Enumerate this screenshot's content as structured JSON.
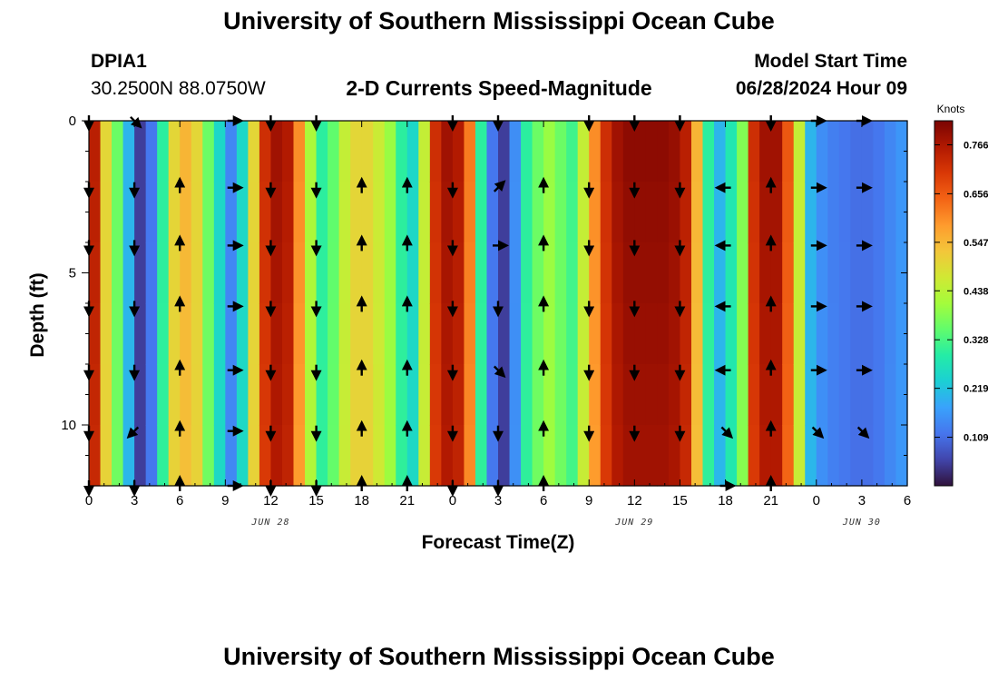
{
  "header": {
    "title": "University of Southern Mississippi Ocean Cube",
    "station_id": "DPIA1",
    "coordinates": "30.2500N  88.0750W",
    "chart_title": "2-D Currents Speed-Magnitude",
    "model_start_label": "Model Start Time",
    "model_start_value": "06/28/2024 Hour 09"
  },
  "footer": {
    "title": "University of Southern Mississippi Ocean Cube"
  },
  "chart_data": {
    "type": "heatmap",
    "title": "2-D Currents Speed-Magnitude",
    "xlabel": "Forecast Time(Z)",
    "ylabel": "Depth (ft)",
    "xlim": [
      0,
      54
    ],
    "ylim": [
      0,
      12
    ],
    "x_ticks": [
      {
        "label": "0",
        "hour": 0
      },
      {
        "label": "3",
        "hour": 3
      },
      {
        "label": "6",
        "hour": 6
      },
      {
        "label": "9",
        "hour": 9
      },
      {
        "label": "12",
        "hour": 12
      },
      {
        "label": "15",
        "hour": 15
      },
      {
        "label": "18",
        "hour": 18
      },
      {
        "label": "21",
        "hour": 21
      },
      {
        "label": "0",
        "hour": 24
      },
      {
        "label": "3",
        "hour": 27
      },
      {
        "label": "6",
        "hour": 30
      },
      {
        "label": "9",
        "hour": 33
      },
      {
        "label": "12",
        "hour": 36
      },
      {
        "label": "15",
        "hour": 39
      },
      {
        "label": "18",
        "hour": 42
      },
      {
        "label": "21",
        "hour": 45
      },
      {
        "label": "0",
        "hour": 48
      },
      {
        "label": "3",
        "hour": 51
      },
      {
        "label": "6",
        "hour": 54
      }
    ],
    "y_ticks": [
      {
        "label": "0",
        "depth": 0
      },
      {
        "label": "5",
        "depth": 5
      },
      {
        "label": "10",
        "depth": 10
      }
    ],
    "date_labels": [
      {
        "label": "JUN 28",
        "hour": 12
      },
      {
        "label": "JUN 29",
        "hour": 36
      },
      {
        "label": "JUN 30",
        "hour": 51
      }
    ],
    "colorbar": {
      "title": "Knots",
      "min": 0.0,
      "max": 0.82,
      "ticks": [
        "0.109",
        "0.219",
        "0.328",
        "0.438",
        "0.547",
        "0.656",
        "0.766"
      ],
      "colors": [
        "#30123b",
        "#4145ab",
        "#4675ed",
        "#39a2fc",
        "#1bcfd4",
        "#24eca6",
        "#61fc6c",
        "#a4fc3b",
        "#d1e834",
        "#f3c63a",
        "#fe9b2d",
        "#f36315",
        "#d93806",
        "#b11901",
        "#7a0403"
      ]
    },
    "series_hours": [
      0,
      0.75,
      1.5,
      2.25,
      3,
      3.75,
      4.5,
      5.25,
      6,
      6.75,
      7.5,
      8.25,
      9,
      9.75,
      10.5,
      11.25,
      12,
      12.75,
      13.5,
      14.25,
      15,
      15.75,
      16.5,
      17.25,
      18,
      18.75,
      19.5,
      20.25,
      21,
      21.75,
      22.5,
      23.25,
      24,
      24.75,
      25.5,
      26.25,
      27,
      27.75,
      28.5,
      29.25,
      30,
      30.75,
      31.5,
      32.25,
      33,
      33.75,
      34.5,
      35.25,
      36,
      36.75,
      37.5,
      38.25,
      39,
      39.75,
      40.5,
      41.25,
      42,
      42.75,
      43.5,
      44.25,
      45,
      45.75,
      46.5,
      47.25,
      48,
      48.75,
      49.5,
      50.25,
      51,
      51.75,
      52.5,
      53.25
    ],
    "speed_knots": [
      0.75,
      0.5,
      0.36,
      0.2,
      0.05,
      0.12,
      0.3,
      0.5,
      0.55,
      0.5,
      0.36,
      0.25,
      0.14,
      0.25,
      0.5,
      0.72,
      0.78,
      0.76,
      0.6,
      0.42,
      0.3,
      0.35,
      0.45,
      0.5,
      0.5,
      0.46,
      0.4,
      0.3,
      0.25,
      0.45,
      0.72,
      0.78,
      0.76,
      0.62,
      0.3,
      0.12,
      0.05,
      0.15,
      0.3,
      0.36,
      0.4,
      0.36,
      0.32,
      0.45,
      0.6,
      0.72,
      0.78,
      0.8,
      0.8,
      0.8,
      0.8,
      0.79,
      0.75,
      0.55,
      0.3,
      0.2,
      0.28,
      0.38,
      0.72,
      0.78,
      0.78,
      0.66,
      0.45,
      0.2,
      0.15,
      0.13,
      0.12,
      0.11,
      0.11,
      0.12,
      0.14,
      0.16
    ],
    "arrow_depths": [
      0,
      2.2,
      4.1,
      6.1,
      8.2,
      10.2,
      12
    ],
    "arrows": [
      {
        "hour": 0,
        "dirs": [
          "S",
          "S",
          "S",
          "S",
          "S",
          "S",
          "S"
        ]
      },
      {
        "hour": 3,
        "dirs": [
          "SE",
          "S",
          "S",
          "S",
          "S",
          "SW",
          "S"
        ]
      },
      {
        "hour": 6,
        "dirs": [
          "",
          "N",
          "N",
          "N",
          "N",
          "N",
          "N"
        ]
      },
      {
        "hour": 9.5,
        "dirs": [
          "E",
          "E",
          "E",
          "E",
          "E",
          "E",
          "E"
        ]
      },
      {
        "hour": 12,
        "dirs": [
          "S",
          "S",
          "S",
          "S",
          "S",
          "S",
          "S"
        ]
      },
      {
        "hour": 15,
        "dirs": [
          "S",
          "S",
          "S",
          "S",
          "S",
          "S",
          "S"
        ]
      },
      {
        "hour": 18,
        "dirs": [
          "",
          "N",
          "N",
          "N",
          "N",
          "N",
          "N"
        ]
      },
      {
        "hour": 21,
        "dirs": [
          "",
          "N",
          "N",
          "N",
          "N",
          "N",
          "N"
        ]
      },
      {
        "hour": 24,
        "dirs": [
          "S",
          "S",
          "S",
          "S",
          "S",
          "S",
          "S"
        ]
      },
      {
        "hour": 27,
        "dirs": [
          "S",
          "NE",
          "E",
          "S",
          "SE",
          "S",
          "S"
        ]
      },
      {
        "hour": 30,
        "dirs": [
          "",
          "N",
          "N",
          "N",
          "N",
          "N",
          "N"
        ]
      },
      {
        "hour": 33,
        "dirs": [
          "S",
          "S",
          "S",
          "S",
          "S",
          "S",
          ""
        ]
      },
      {
        "hour": 36,
        "dirs": [
          "S",
          "S",
          "S",
          "S",
          "S",
          "S",
          ""
        ]
      },
      {
        "hour": 39,
        "dirs": [
          "S",
          "S",
          "S",
          "S",
          "S",
          "S",
          ""
        ]
      },
      {
        "hour": 42,
        "dirs": [
          "",
          "W",
          "W",
          "W",
          "W",
          "SE",
          "E"
        ]
      },
      {
        "hour": 45,
        "dirs": [
          "S",
          "N",
          "N",
          "N",
          "N",
          "N",
          "N"
        ]
      },
      {
        "hour": 48,
        "dirs": [
          "E",
          "E",
          "E",
          "E",
          "E",
          "SE",
          ""
        ]
      },
      {
        "hour": 51,
        "dirs": [
          "E",
          "E",
          "E",
          "E",
          "E",
          "SE",
          ""
        ]
      },
      {
        "hour": 54,
        "dirs": [
          "",
          "",
          "",
          "",
          "",
          "",
          ""
        ]
      }
    ]
  }
}
